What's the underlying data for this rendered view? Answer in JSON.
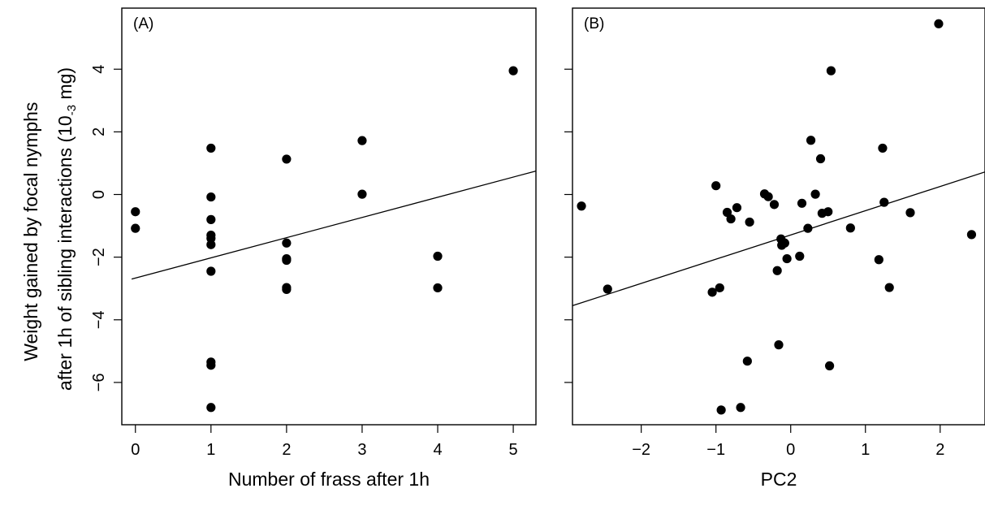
{
  "ylabel_line1": "Weight gained by focal nymphs",
  "ylabel_line2_prefix": "after 1h of sibling interactions (10",
  "ylabel_line2_sup": "-3",
  "ylabel_line2_suffix": " mg)",
  "chart_data": [
    {
      "type": "scatter",
      "panel_label": "(A)",
      "xlabel": "Number of frass after 1h",
      "ylabel": "Weight gained by focal nymphs after 1h of sibling interactions (10-3 mg)",
      "xlim": [
        -0.18,
        5.3
      ],
      "ylim": [
        -7.35,
        5.95
      ],
      "xticks": [
        0,
        1,
        2,
        3,
        4,
        5
      ],
      "yticks": [
        -6,
        -4,
        -2,
        0,
        2,
        4
      ],
      "points": [
        {
          "x": 0,
          "y": -0.55
        },
        {
          "x": 0,
          "y": -1.08
        },
        {
          "x": 1,
          "y": 1.48
        },
        {
          "x": 1,
          "y": -0.08
        },
        {
          "x": 1,
          "y": -0.8
        },
        {
          "x": 1,
          "y": -1.3
        },
        {
          "x": 1,
          "y": -1.4
        },
        {
          "x": 1,
          "y": -1.6
        },
        {
          "x": 1,
          "y": -2.45
        },
        {
          "x": 1,
          "y": -5.35
        },
        {
          "x": 1,
          "y": -5.45
        },
        {
          "x": 1,
          "y": -6.8
        },
        {
          "x": 2,
          "y": 1.13
        },
        {
          "x": 2,
          "y": -1.55
        },
        {
          "x": 2,
          "y": -2.05
        },
        {
          "x": 2,
          "y": -2.1
        },
        {
          "x": 2,
          "y": -2.97
        },
        {
          "x": 2,
          "y": -3.03
        },
        {
          "x": 3,
          "y": 1.72
        },
        {
          "x": 3,
          "y": 0.01
        },
        {
          "x": 4,
          "y": -1.97
        },
        {
          "x": 4,
          "y": -2.98
        },
        {
          "x": 5,
          "y": 3.95
        }
      ],
      "fit_line": {
        "x": [
          -0.05,
          5.3
        ],
        "y": [
          -2.7,
          0.75
        ]
      }
    },
    {
      "type": "scatter",
      "panel_label": "(B)",
      "xlabel": "PC2",
      "xlim": [
        -2.92,
        2.6
      ],
      "ylim": [
        -7.35,
        5.95
      ],
      "xticks": [
        -2,
        -1,
        0,
        1,
        2
      ],
      "yticks": [
        -6,
        -4,
        -2,
        0,
        2,
        4
      ],
      "points": [
        {
          "x": -2.8,
          "y": -0.37
        },
        {
          "x": -2.45,
          "y": -3.02
        },
        {
          "x": -1.05,
          "y": -3.12
        },
        {
          "x": -1.0,
          "y": 0.28
        },
        {
          "x": -0.95,
          "y": -2.98
        },
        {
          "x": -0.93,
          "y": -6.88
        },
        {
          "x": -0.85,
          "y": -0.57
        },
        {
          "x": -0.8,
          "y": -0.78
        },
        {
          "x": -0.72,
          "y": -0.42
        },
        {
          "x": -0.67,
          "y": -6.8
        },
        {
          "x": -0.58,
          "y": -5.32
        },
        {
          "x": -0.55,
          "y": -0.88
        },
        {
          "x": -0.35,
          "y": 0.02
        },
        {
          "x": -0.3,
          "y": -0.07
        },
        {
          "x": -0.22,
          "y": -0.32
        },
        {
          "x": -0.18,
          "y": -2.43
        },
        {
          "x": -0.16,
          "y": -4.8
        },
        {
          "x": -0.13,
          "y": -1.42
        },
        {
          "x": -0.12,
          "y": -1.62
        },
        {
          "x": -0.08,
          "y": -1.55
        },
        {
          "x": -0.05,
          "y": -2.05
        },
        {
          "x": 0.12,
          "y": -1.97
        },
        {
          "x": 0.15,
          "y": -0.28
        },
        {
          "x": 0.23,
          "y": -1.08
        },
        {
          "x": 0.27,
          "y": 1.73
        },
        {
          "x": 0.33,
          "y": 0.01
        },
        {
          "x": 0.4,
          "y": 1.14
        },
        {
          "x": 0.42,
          "y": -0.6
        },
        {
          "x": 0.5,
          "y": -0.55
        },
        {
          "x": 0.52,
          "y": -5.47
        },
        {
          "x": 0.54,
          "y": 3.95
        },
        {
          "x": 0.8,
          "y": -1.07
        },
        {
          "x": 1.18,
          "y": -2.08
        },
        {
          "x": 1.23,
          "y": 1.48
        },
        {
          "x": 1.25,
          "y": -0.25
        },
        {
          "x": 1.32,
          "y": -2.97
        },
        {
          "x": 1.6,
          "y": -0.58
        },
        {
          "x": 1.98,
          "y": 5.45
        },
        {
          "x": 2.42,
          "y": -1.28
        }
      ],
      "fit_line": {
        "x": [
          -2.92,
          2.6
        ],
        "y": [
          -3.55,
          0.72
        ]
      }
    }
  ]
}
